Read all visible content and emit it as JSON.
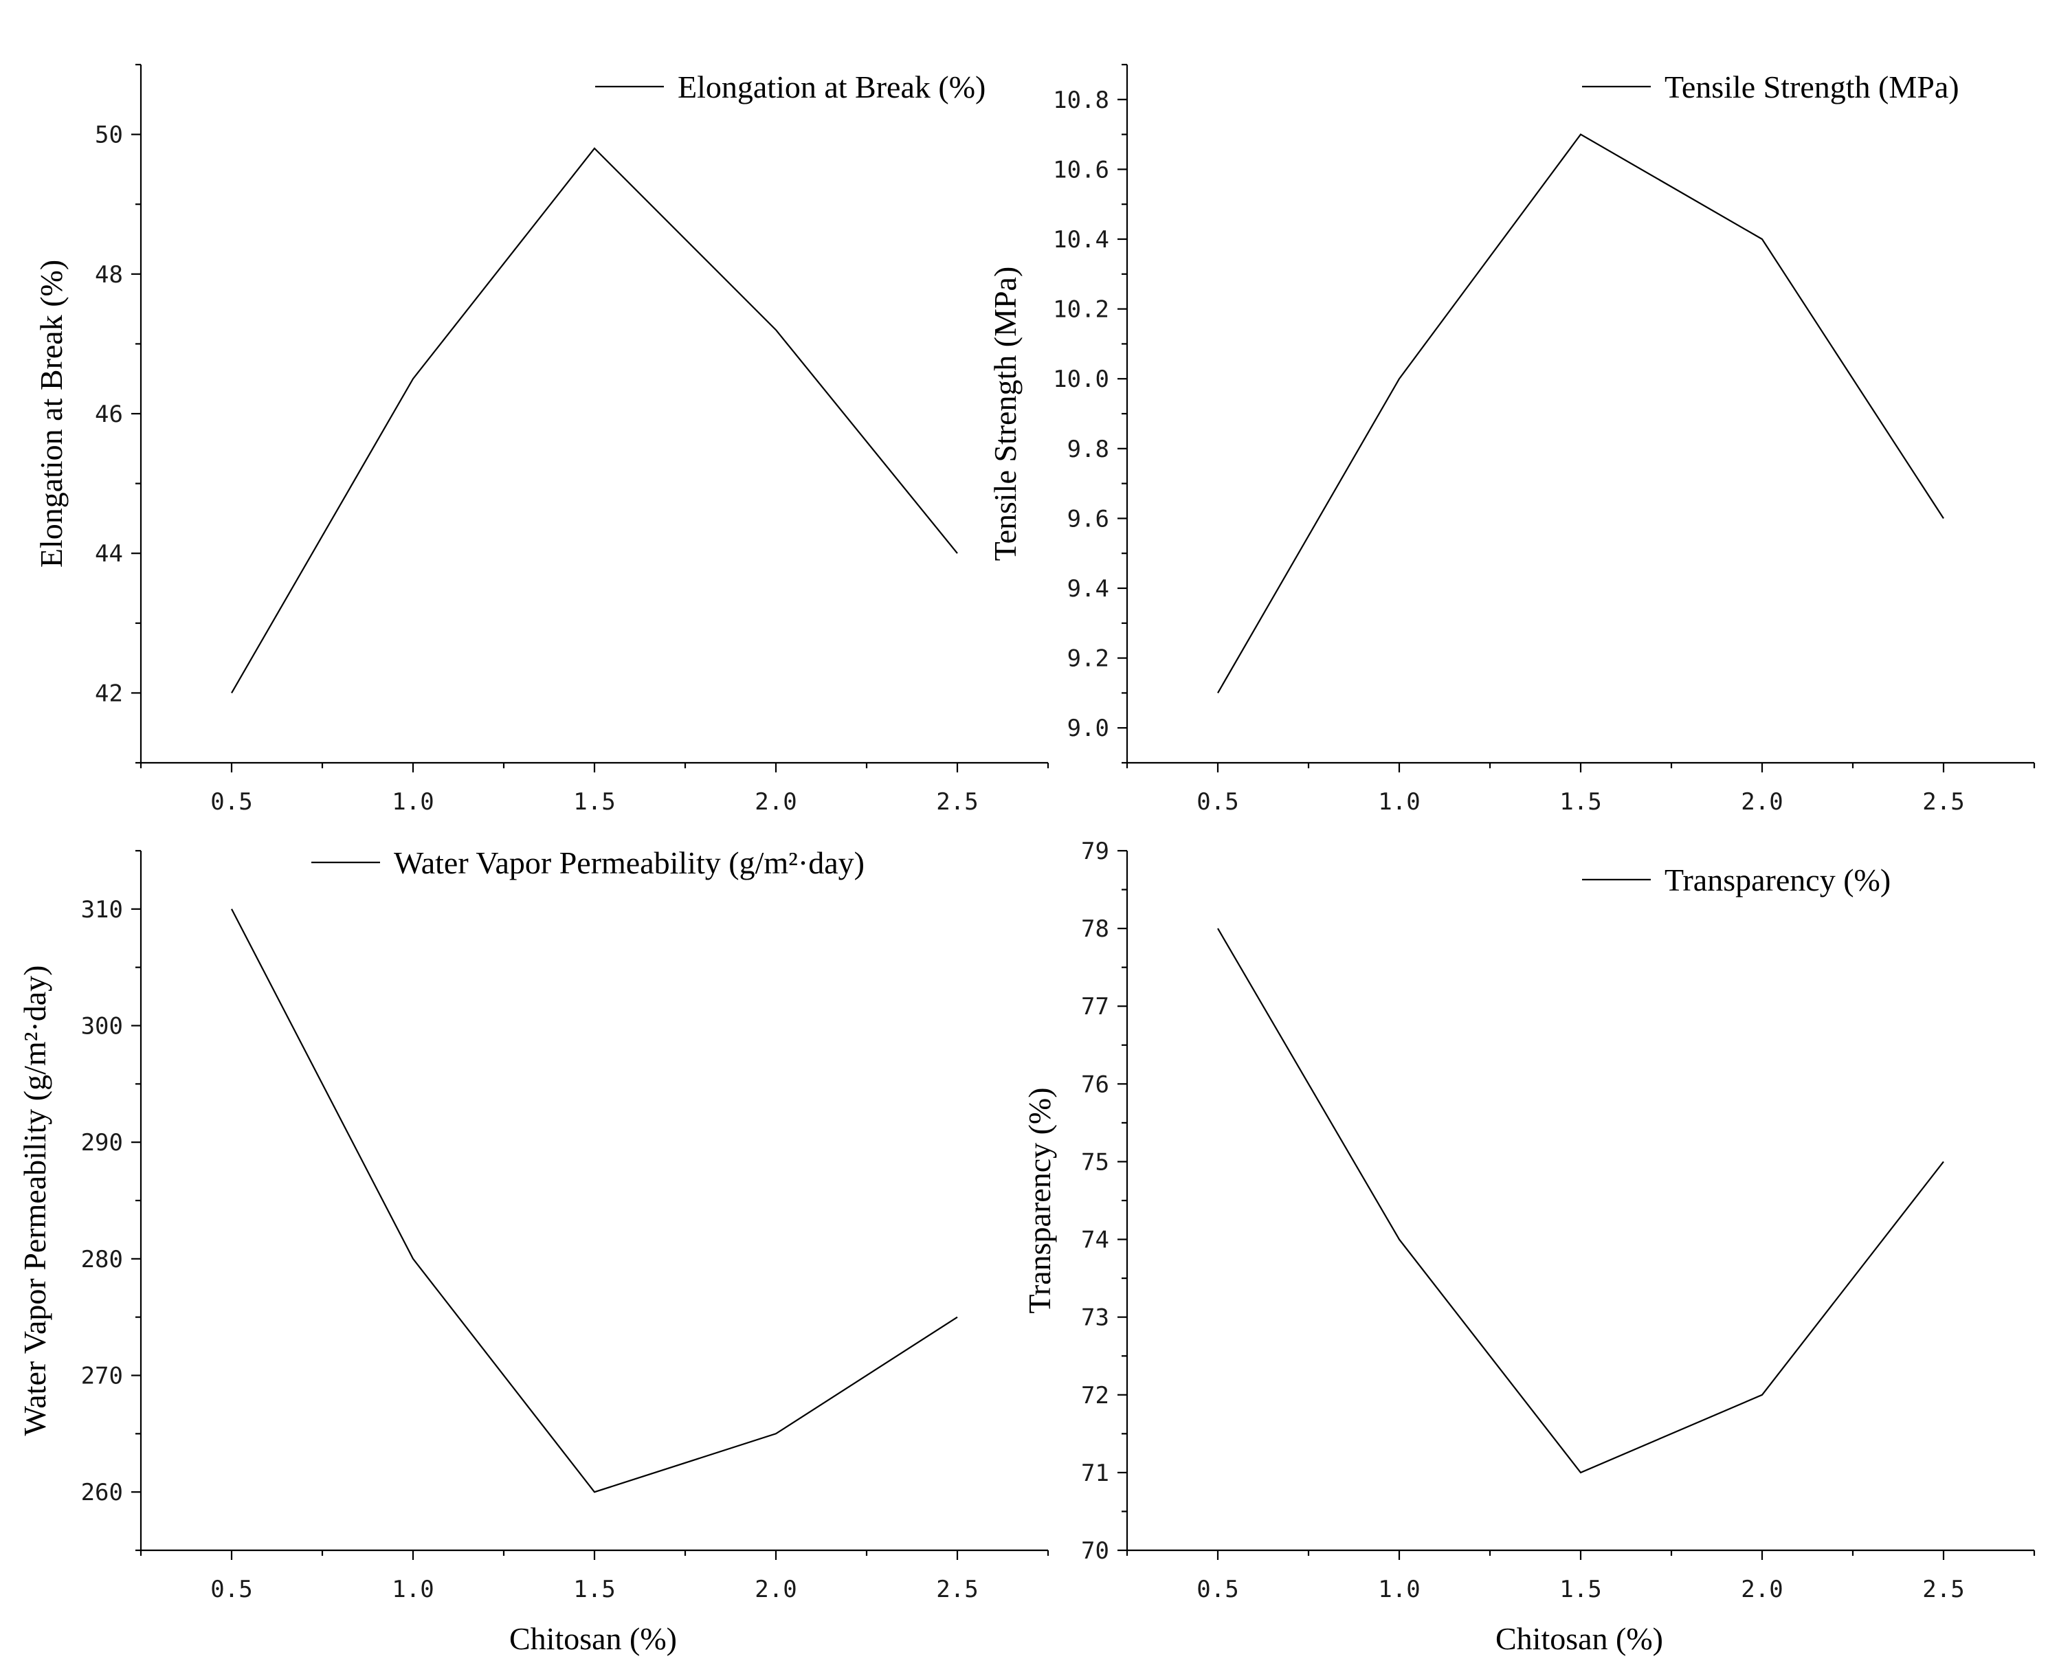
{
  "chart_data": [
    {
      "type": "line",
      "x": [
        0.5,
        1.0,
        1.5,
        2.0,
        2.5
      ],
      "x_tick_labels": [
        "0.5",
        "1.0",
        "1.5",
        "2.0",
        "2.5"
      ],
      "series": [
        {
          "name": "Elongation at Break (%)",
          "values": [
            42,
            46.5,
            49.8,
            47.2,
            44
          ]
        }
      ],
      "xlabel": "",
      "ylabel": "Elongation at Break (%)",
      "xlim": [
        0.25,
        2.75
      ],
      "ylim": [
        41,
        51
      ],
      "y_ticks": [
        42,
        44,
        46,
        48,
        50
      ],
      "y_tick_labels": [
        "42",
        "44",
        "46",
        "48",
        "50"
      ],
      "legend": "top-right",
      "grid": false
    },
    {
      "type": "line",
      "x": [
        0.5,
        1.0,
        1.5,
        2.0,
        2.5
      ],
      "x_tick_labels": [
        "0.5",
        "1.0",
        "1.5",
        "2.0",
        "2.5"
      ],
      "series": [
        {
          "name": "Tensile Strength (MPa)",
          "values": [
            9.1,
            10.0,
            10.7,
            10.4,
            9.6
          ]
        }
      ],
      "xlabel": "",
      "ylabel": "Tensile Strength (MPa)",
      "xlim": [
        0.25,
        2.75
      ],
      "ylim": [
        8.9,
        10.9
      ],
      "y_ticks": [
        9.0,
        9.2,
        9.4,
        9.6,
        9.8,
        10.0,
        10.2,
        10.4,
        10.6,
        10.8
      ],
      "y_tick_labels": [
        "9.0",
        "9.2",
        "9.4",
        "9.6",
        "9.8",
        "10.0",
        "10.2",
        "10.4",
        "10.6",
        "10.8"
      ],
      "legend": "top-right",
      "grid": false
    },
    {
      "type": "line",
      "x": [
        0.5,
        1.0,
        1.5,
        2.0,
        2.5
      ],
      "x_tick_labels": [
        "0.5",
        "1.0",
        "1.5",
        "2.0",
        "2.5"
      ],
      "series": [
        {
          "name": "Water Vapor Permeability (g/m²·day)",
          "values": [
            310,
            280,
            260,
            265,
            275
          ]
        }
      ],
      "xlabel": "Chitosan (%)",
      "ylabel": "Water Vapor Permeability (g/m²·day)",
      "xlim": [
        0.25,
        2.75
      ],
      "ylim": [
        255,
        315
      ],
      "y_ticks": [
        260,
        270,
        280,
        290,
        300,
        310
      ],
      "y_tick_labels": [
        "260",
        "270",
        "280",
        "290",
        "300",
        "310"
      ],
      "legend": "top-right",
      "grid": false
    },
    {
      "type": "line",
      "x": [
        0.5,
        1.0,
        1.5,
        2.0,
        2.5
      ],
      "x_tick_labels": [
        "0.5",
        "1.0",
        "1.5",
        "2.0",
        "2.5"
      ],
      "series": [
        {
          "name": "Transparency (%)",
          "values": [
            78,
            74,
            71,
            72,
            75
          ]
        }
      ],
      "xlabel": "Chitosan (%)",
      "ylabel": "Transparency (%)",
      "xlim": [
        0.25,
        2.75
      ],
      "ylim": [
        70,
        79
      ],
      "y_ticks": [
        70,
        71,
        72,
        73,
        74,
        75,
        76,
        77,
        78,
        79
      ],
      "y_tick_labels": [
        "70",
        "71",
        "72",
        "73",
        "74",
        "75",
        "76",
        "77",
        "78",
        "79"
      ],
      "legend": "top-right",
      "grid": false
    }
  ]
}
